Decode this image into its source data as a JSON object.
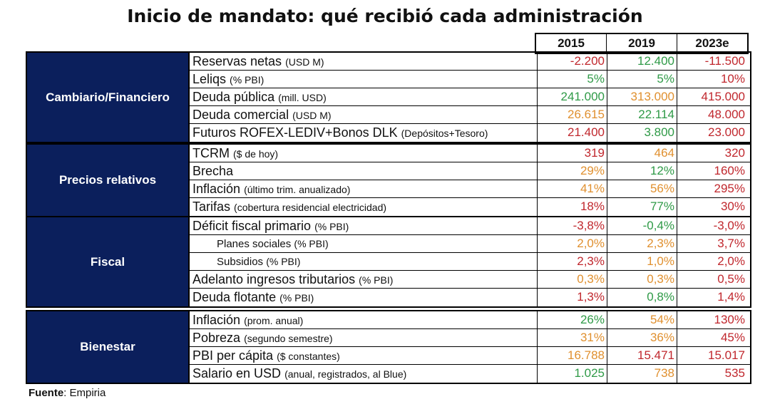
{
  "title": "Inicio de mandato: qué recibió cada administración",
  "years": [
    "2015",
    "2019",
    "2023e"
  ],
  "sections": [
    {
      "name": "Cambiario/Financiero",
      "rows": [
        {
          "label": "Reservas netas",
          "note": "(USD M)",
          "sub": false,
          "values": [
            {
              "v": "-2.200",
              "c": "red"
            },
            {
              "v": "12.400",
              "c": "green"
            },
            {
              "v": "-11.500",
              "c": "red"
            }
          ]
        },
        {
          "label": "Leliqs",
          "note": "(% PBI)",
          "sub": false,
          "values": [
            {
              "v": "5%",
              "c": "green"
            },
            {
              "v": "5%",
              "c": "green"
            },
            {
              "v": "10%",
              "c": "red"
            }
          ]
        },
        {
          "label": "Deuda pública",
          "note": "(mill. USD)",
          "sub": false,
          "values": [
            {
              "v": "241.000",
              "c": "green"
            },
            {
              "v": "313.000",
              "c": "orange"
            },
            {
              "v": "415.000",
              "c": "red"
            }
          ]
        },
        {
          "label": "Deuda comercial",
          "note": "(USD M)",
          "sub": false,
          "values": [
            {
              "v": "26.615",
              "c": "orange"
            },
            {
              "v": "22.114",
              "c": "green"
            },
            {
              "v": "48.000",
              "c": "red"
            }
          ]
        },
        {
          "label": "Futuros ROFEX-LEDIV+Bonos DLK",
          "note": "(Depósitos+Tesoro)",
          "sub": false,
          "values": [
            {
              "v": "21.400",
              "c": "red"
            },
            {
              "v": "3.800",
              "c": "green"
            },
            {
              "v": "23.000",
              "c": "red"
            }
          ]
        }
      ]
    },
    {
      "name": "Precios relativos",
      "rows": [
        {
          "label": "TCRM",
          "note": "($ de hoy)",
          "sub": false,
          "values": [
            {
              "v": "319",
              "c": "red"
            },
            {
              "v": "464",
              "c": "orange"
            },
            {
              "v": "320",
              "c": "red"
            }
          ]
        },
        {
          "label": "Brecha",
          "note": "",
          "sub": false,
          "values": [
            {
              "v": "29%",
              "c": "orange"
            },
            {
              "v": "12%",
              "c": "green"
            },
            {
              "v": "160%",
              "c": "red"
            }
          ]
        },
        {
          "label": "Inflación",
          "note": "(último trim. anualizado)",
          "sub": false,
          "values": [
            {
              "v": "41%",
              "c": "orange"
            },
            {
              "v": "56%",
              "c": "orange"
            },
            {
              "v": "295%",
              "c": "red"
            }
          ]
        },
        {
          "label": "Tarifas",
          "note": "(cobertura residencial electricidad)",
          "sub": false,
          "values": [
            {
              "v": "18%",
              "c": "red"
            },
            {
              "v": "77%",
              "c": "green"
            },
            {
              "v": "30%",
              "c": "red"
            }
          ]
        }
      ]
    },
    {
      "name": "Fiscal",
      "rows": [
        {
          "label": "Déficit fiscal primario",
          "note": "(% PBI)",
          "sub": false,
          "values": [
            {
              "v": "-3,8%",
              "c": "red"
            },
            {
              "v": "-0,4%",
              "c": "green"
            },
            {
              "v": "-3,0%",
              "c": "red"
            }
          ]
        },
        {
          "label": "Planes sociales",
          "note": "(% PBI)",
          "sub": true,
          "values": [
            {
              "v": "2,0%",
              "c": "orange"
            },
            {
              "v": "2,3%",
              "c": "orange"
            },
            {
              "v": "3,7%",
              "c": "red"
            }
          ]
        },
        {
          "label": "Subsidios",
          "note": "(% PBI)",
          "sub": true,
          "values": [
            {
              "v": "2,3%",
              "c": "red"
            },
            {
              "v": "1,0%",
              "c": "orange"
            },
            {
              "v": "2,0%",
              "c": "red"
            }
          ]
        },
        {
          "label": "Adelanto ingresos tributarios",
          "note": "(% PBI)",
          "sub": false,
          "values": [
            {
              "v": "0,3%",
              "c": "orange"
            },
            {
              "v": "0,3%",
              "c": "orange"
            },
            {
              "v": "0,5%",
              "c": "red"
            }
          ]
        },
        {
          "label": "Deuda flotante",
          "note": "(% PBI)",
          "sub": false,
          "values": [
            {
              "v": "1,3%",
              "c": "red"
            },
            {
              "v": "0,8%",
              "c": "green"
            },
            {
              "v": "1,4%",
              "c": "red"
            }
          ]
        }
      ]
    },
    {
      "name": "Bienestar",
      "rows": [
        {
          "label": "Inflación",
          "note": "(prom. anual)",
          "sub": false,
          "values": [
            {
              "v": "26%",
              "c": "green"
            },
            {
              "v": "54%",
              "c": "orange"
            },
            {
              "v": "130%",
              "c": "red"
            }
          ]
        },
        {
          "label": "Pobreza",
          "note": "(segundo semestre)",
          "sub": false,
          "values": [
            {
              "v": "31%",
              "c": "orange"
            },
            {
              "v": "36%",
              "c": "orange"
            },
            {
              "v": "45%",
              "c": "red"
            }
          ]
        },
        {
          "label": "PBI per cápita",
          "note": "($ constantes)",
          "sub": false,
          "values": [
            {
              "v": "16.788",
              "c": "orange"
            },
            {
              "v": "15.471",
              "c": "red"
            },
            {
              "v": "15.017",
              "c": "red"
            }
          ]
        },
        {
          "label": "Salario en USD",
          "note": "(anual, registrados, al Blue)",
          "sub": false,
          "values": [
            {
              "v": "1.025",
              "c": "green"
            },
            {
              "v": "738",
              "c": "orange"
            },
            {
              "v": "535",
              "c": "red"
            }
          ]
        }
      ]
    }
  ],
  "source_label": "Fuente",
  "source_value": ": Empiria",
  "colors": {
    "header_bg": "#0b1f5c",
    "red": "#c0272d",
    "green": "#2f9a47",
    "orange": "#e0902f"
  }
}
